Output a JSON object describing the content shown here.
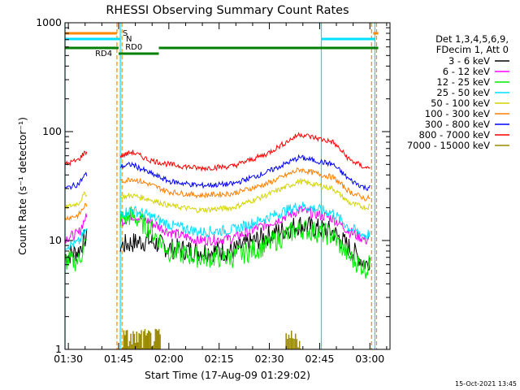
{
  "chart_data": {
    "type": "line",
    "title": "RHESSI Observing Summary Count Rates",
    "xlabel": "Start Time (17-Aug-09 01:29:02)",
    "ylabel": "Count Rate (s⁻¹ detector⁻¹)",
    "y_scale": "log",
    "ylim": [
      1,
      1000
    ],
    "xlim_minutes": [
      0,
      97
    ],
    "x_tick_labels": [
      "01:30",
      "01:45",
      "02:00",
      "02:15",
      "02:30",
      "02:45",
      "03:00"
    ],
    "x_tick_minutes": [
      1,
      16,
      31,
      46,
      61,
      76,
      91
    ],
    "y_tick_labels": [
      "1",
      "10",
      "100",
      "1000"
    ],
    "y_tick_values": [
      1,
      10,
      100,
      1000
    ],
    "legend_header": [
      "Det 1,3,4,5,6,9,",
      "FDecim 1, Att 0"
    ],
    "legend_placement": "right",
    "flags": {
      "saa": {
        "label": "S",
        "color": "#ff8800"
      },
      "night": {
        "label": "N",
        "color": "#00e0ff"
      },
      "decim": {
        "label": "RD0",
        "color": "#008000"
      },
      "rd4": {
        "label": "RD4",
        "color": "#008000"
      }
    },
    "boundaries_minutes": {
      "cyan": [
        0,
        16.5,
        76.5,
        92.5
      ],
      "orange_dashed": [
        15.5,
        17,
        91.5,
        93
      ]
    },
    "series": [
      {
        "name": "3 - 6 keV",
        "color": "#000000",
        "x": [
          0,
          4,
          6,
          17,
          20,
          25,
          31,
          40,
          50,
          60,
          70,
          80,
          85,
          90,
          91
        ],
        "y": [
          7.2,
          8,
          10.5,
          9,
          9.5,
          10,
          8.5,
          8,
          8,
          11,
          14,
          12,
          8.5,
          6,
          7
        ]
      },
      {
        "name": "6 - 12 keV",
        "color": "#ff00ff",
        "x": [
          0,
          4,
          6,
          17,
          20,
          25,
          31,
          40,
          50,
          60,
          70,
          80,
          85,
          90,
          91
        ],
        "y": [
          10.5,
          11.5,
          16,
          15,
          17,
          15,
          12,
          10,
          10.5,
          14,
          19,
          16,
          12,
          10,
          11
        ]
      },
      {
        "name": "12 - 25 keV",
        "color": "#00ee00",
        "x": [
          0,
          4,
          6,
          17,
          20,
          25,
          31,
          40,
          50,
          60,
          70,
          80,
          85,
          90,
          91
        ],
        "y": [
          6.5,
          6.5,
          9,
          16,
          17,
          13,
          8,
          7,
          7,
          9,
          13,
          11,
          7,
          5.5,
          6
        ]
      },
      {
        "name": "25 - 50 keV",
        "color": "#00e0ff",
        "x": [
          0,
          4,
          6,
          17,
          20,
          25,
          31,
          40,
          50,
          60,
          70,
          80,
          85,
          90,
          91
        ],
        "y": [
          9,
          9.5,
          12,
          18,
          19,
          17,
          14,
          12,
          12.5,
          16,
          21,
          18,
          13,
          11,
          12
        ]
      },
      {
        "name": "50 - 100 keV",
        "color": "#d4d400",
        "x": [
          0,
          4,
          6,
          17,
          20,
          25,
          31,
          40,
          50,
          60,
          70,
          80,
          85,
          90,
          91
        ],
        "y": [
          20,
          22,
          27,
          25,
          26,
          24,
          21,
          19,
          20,
          26,
          35,
          30,
          22,
          20,
          21
        ]
      },
      {
        "name": "100 - 300 keV",
        "color": "#ff7f00",
        "x": [
          0,
          4,
          6,
          17,
          20,
          25,
          31,
          40,
          50,
          60,
          70,
          80,
          85,
          90,
          91
        ],
        "y": [
          16,
          17,
          21,
          35,
          37,
          33,
          28,
          26,
          27,
          33,
          45,
          38,
          28,
          24,
          25
        ]
      },
      {
        "name": "300 - 800 keV",
        "color": "#0000ff",
        "x": [
          0,
          4,
          6,
          17,
          20,
          25,
          31,
          40,
          50,
          60,
          70,
          80,
          85,
          90,
          91
        ],
        "y": [
          30,
          33,
          40,
          48,
          50,
          42,
          35,
          32,
          33,
          42,
          58,
          50,
          36,
          30,
          32
        ]
      },
      {
        "name": "800 - 7000 keV",
        "color": "#ff0000",
        "x": [
          0,
          4,
          6,
          17,
          20,
          25,
          31,
          40,
          50,
          60,
          70,
          80,
          85,
          90,
          91
        ],
        "y": [
          50,
          55,
          65,
          60,
          65,
          55,
          50,
          46,
          48,
          62,
          95,
          80,
          55,
          46,
          48
        ]
      },
      {
        "name": "7000 - 15000 keV",
        "color": "#9a8a00",
        "x": [
          17,
          20,
          25,
          28,
          30,
          66,
          70,
          76
        ],
        "y": [
          1.4,
          1.6,
          1.5,
          1.6,
          1,
          1,
          1.5,
          1.3
        ]
      }
    ],
    "annotations": [
      {
        "text": "S",
        "color": "#ff8800"
      },
      {
        "text": "N",
        "color": "#00e0ff"
      },
      {
        "text": "RD0",
        "color": "#008000"
      },
      {
        "text": "RD4",
        "color": "#008000"
      }
    ],
    "footer_timestamp": "15-Oct-2021 13:45"
  }
}
